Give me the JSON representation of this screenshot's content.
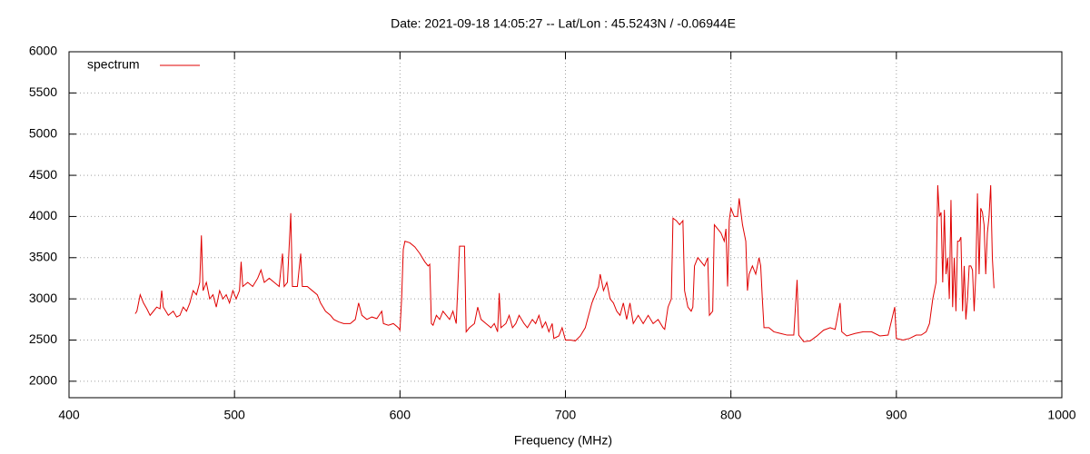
{
  "chart_data": {
    "type": "line",
    "title": "Date: 2021-09-18 14:05:27  --  Lat/Lon : 45.5243N / -0.06944E",
    "x_label": "Frequency (MHz)",
    "xlim": [
      400,
      1000
    ],
    "xticks": [
      400,
      500,
      600,
      700,
      800,
      900,
      1000
    ],
    "ylim": [
      1800,
      6000
    ],
    "yticks": [
      2000,
      2500,
      3000,
      3500,
      4000,
      4500,
      5000,
      5500,
      6000
    ],
    "grid": true,
    "legend": "top-left",
    "x": [
      440,
      441,
      443,
      445,
      447,
      449,
      451,
      453,
      455,
      456,
      457,
      460,
      463,
      465,
      467,
      469,
      471,
      473,
      475,
      477,
      479,
      480,
      481,
      483,
      485,
      487,
      489,
      491,
      493,
      495,
      497,
      499,
      501,
      503,
      504,
      505,
      508,
      511,
      514,
      516,
      518,
      521,
      524,
      527,
      529,
      530,
      532,
      534,
      535,
      538,
      540,
      541,
      544,
      547,
      550,
      552,
      555,
      558,
      560,
      563,
      566,
      570,
      573,
      575,
      577,
      580,
      583,
      586,
      589,
      590,
      593,
      596,
      599,
      600,
      601,
      602,
      603,
      606,
      609,
      612,
      615,
      617,
      618,
      619,
      620,
      622,
      624,
      626,
      628,
      630,
      632,
      634,
      636,
      639,
      640,
      642,
      645,
      647,
      649,
      652,
      655,
      657,
      659,
      660,
      661,
      664,
      666,
      668,
      670,
      672,
      675,
      677,
      680,
      682,
      684,
      686,
      688,
      690,
      692,
      693,
      696,
      698,
      700,
      703,
      706,
      709,
      712,
      714,
      716,
      718,
      720,
      721,
      723,
      725,
      727,
      729,
      731,
      733,
      735,
      737,
      739,
      741,
      744,
      747,
      750,
      753,
      756,
      759,
      760,
      762,
      764,
      765,
      767,
      769,
      771,
      772,
      774,
      776,
      777,
      778,
      780,
      782,
      784,
      786,
      787,
      789,
      790,
      792,
      794,
      796,
      797,
      798,
      799,
      800,
      802,
      804,
      805,
      807,
      809,
      810,
      811,
      813,
      815,
      817,
      818,
      819,
      820,
      823,
      826,
      830,
      834,
      838,
      840,
      841,
      844,
      848,
      852,
      856,
      860,
      863,
      866,
      867,
      870,
      875,
      880,
      885,
      890,
      895,
      899,
      900,
      904,
      908,
      912,
      915,
      918,
      920,
      922,
      924,
      925,
      926,
      927,
      928,
      929,
      930,
      931,
      932,
      933,
      934,
      935,
      936,
      937,
      938,
      939,
      940,
      941,
      942,
      943,
      944,
      945,
      946,
      947,
      948,
      949,
      950,
      951,
      952,
      953,
      954,
      955,
      956,
      957,
      958,
      959
    ],
    "series": [
      {
        "name": "spectrum",
        "color": "#e00000",
        "values": [
          2820,
          2850,
          3050,
          2950,
          2880,
          2800,
          2850,
          2900,
          2880,
          3100,
          2900,
          2800,
          2850,
          2780,
          2800,
          2900,
          2850,
          2950,
          3100,
          3050,
          3200,
          3770,
          3100,
          3200,
          3000,
          3050,
          2900,
          3100,
          3000,
          3050,
          2950,
          3100,
          3000,
          3100,
          3450,
          3150,
          3200,
          3150,
          3250,
          3350,
          3200,
          3250,
          3200,
          3150,
          3550,
          3150,
          3200,
          4040,
          3150,
          3150,
          3550,
          3150,
          3150,
          3100,
          3050,
          2950,
          2850,
          2800,
          2750,
          2720,
          2700,
          2700,
          2750,
          2950,
          2800,
          2750,
          2780,
          2760,
          2850,
          2700,
          2680,
          2700,
          2650,
          2620,
          3000,
          3600,
          3700,
          3680,
          3630,
          3550,
          3450,
          3400,
          3420,
          2700,
          2680,
          2800,
          2750,
          2850,
          2800,
          2750,
          2850,
          2700,
          3640,
          3640,
          2600,
          2650,
          2700,
          2900,
          2750,
          2700,
          2650,
          2700,
          2600,
          3070,
          2650,
          2700,
          2800,
          2650,
          2700,
          2800,
          2700,
          2650,
          2750,
          2700,
          2800,
          2650,
          2720,
          2600,
          2700,
          2520,
          2550,
          2650,
          2500,
          2500,
          2490,
          2550,
          2650,
          2800,
          2950,
          3050,
          3150,
          3300,
          3100,
          3200,
          3000,
          2950,
          2850,
          2800,
          2950,
          2750,
          2950,
          2700,
          2800,
          2700,
          2800,
          2700,
          2750,
          2650,
          2630,
          2900,
          3000,
          3980,
          3950,
          3900,
          3950,
          3100,
          2900,
          2850,
          2900,
          3400,
          3500,
          3450,
          3400,
          3500,
          2800,
          2850,
          3900,
          3850,
          3800,
          3700,
          3850,
          3150,
          3950,
          4100,
          4000,
          4000,
          4220,
          3900,
          3700,
          3100,
          3300,
          3400,
          3300,
          3500,
          3400,
          3000,
          2650,
          2650,
          2600,
          2580,
          2560,
          2560,
          3230,
          2560,
          2480,
          2490,
          2550,
          2620,
          2650,
          2630,
          2950,
          2600,
          2550,
          2580,
          2600,
          2600,
          2550,
          2560,
          2900,
          2520,
          2500,
          2520,
          2560,
          2560,
          2600,
          2700,
          3000,
          3200,
          4380,
          4000,
          4050,
          3200,
          4080,
          3300,
          3500,
          3000,
          4200,
          2900,
          3500,
          2850,
          3700,
          3700,
          3750,
          2850,
          3400,
          2750,
          3000,
          3400,
          3400,
          3350,
          2850,
          3300,
          4280,
          3300,
          4100,
          4050,
          3900,
          3300,
          3800,
          4000,
          4380,
          3500,
          3130
        ]
      }
    ]
  }
}
